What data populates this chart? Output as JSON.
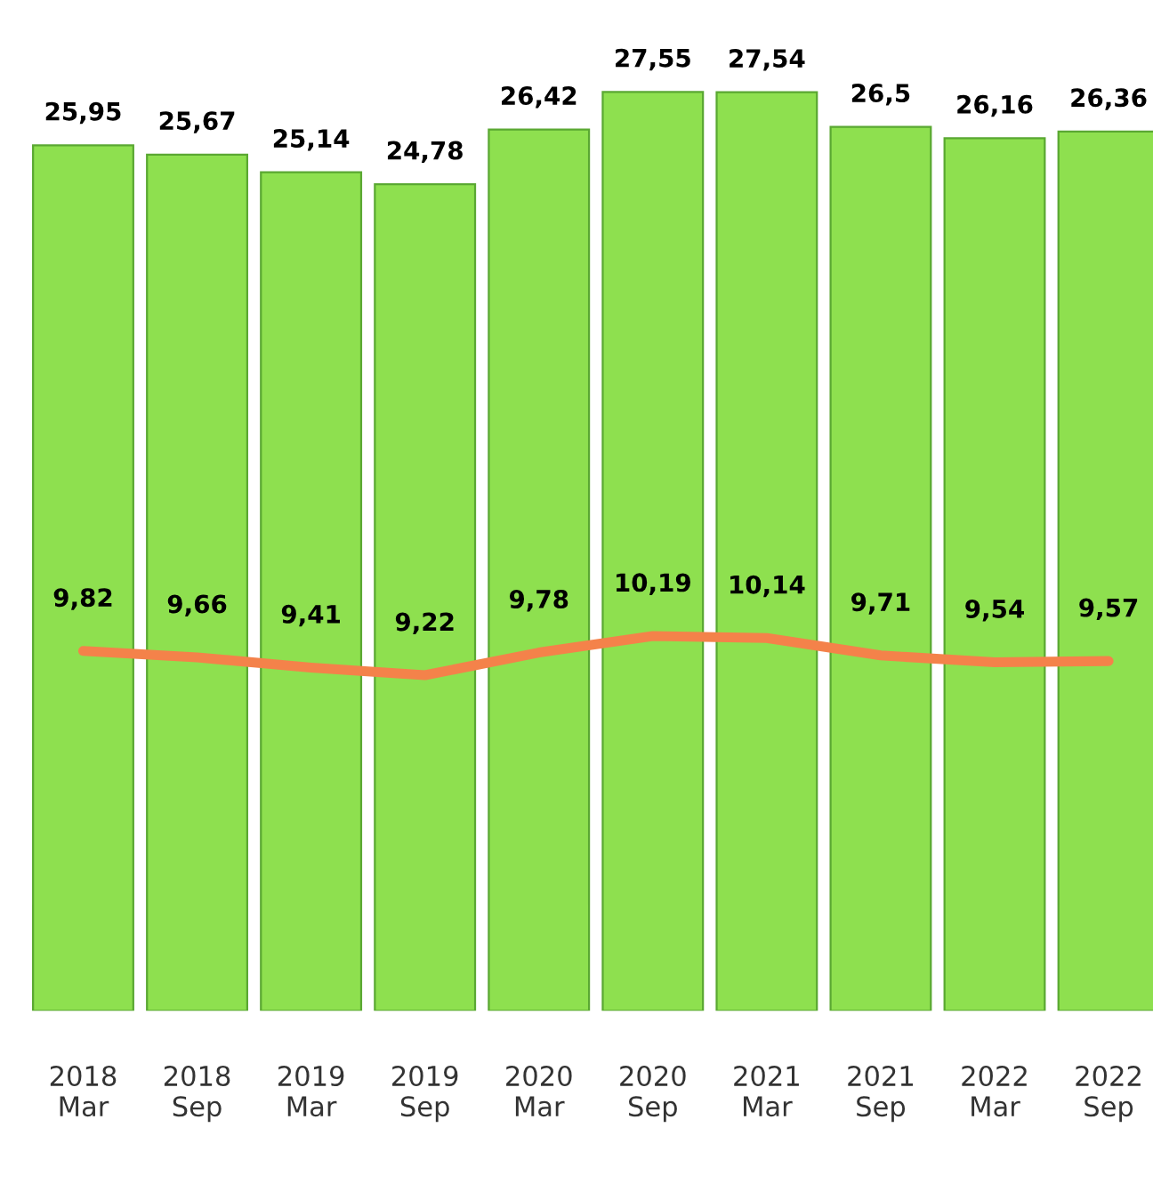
{
  "chart_data": {
    "type": "bar",
    "categories": [
      "2018\nMar",
      "2018\nSep",
      "2019\nMar",
      "2019\nSep",
      "2020\nMar",
      "2020\nSep",
      "2021\nMar",
      "2021\nSep",
      "2022\nMar",
      "2022\nSep"
    ],
    "series": [
      {
        "color": "#8ee04f",
        "values": [
          25.95,
          25.67,
          25.14,
          24.78,
          26.42,
          27.55,
          27.54,
          26.5,
          26.16,
          26.36
        ],
        "value_labels": [
          "25,95",
          "25,67",
          "25,14",
          "24,78",
          "26,42",
          "27,55",
          "27,54",
          "26,5",
          "26,16",
          "26,36"
        ]
      },
      {
        "type": "line",
        "axis": "y2",
        "color": "#f4824a",
        "values": [
          9.82,
          9.66,
          9.41,
          9.22,
          9.78,
          10.19,
          10.14,
          9.71,
          9.54,
          9.57
        ],
        "value_labels": [
          "9,82",
          "9,66",
          "9,41",
          "9,22",
          "9,78",
          "10,19",
          "10,14",
          "9,71",
          "9,54",
          "9,57"
        ]
      }
    ],
    "tick_labels": "x",
    "grid": false
  }
}
